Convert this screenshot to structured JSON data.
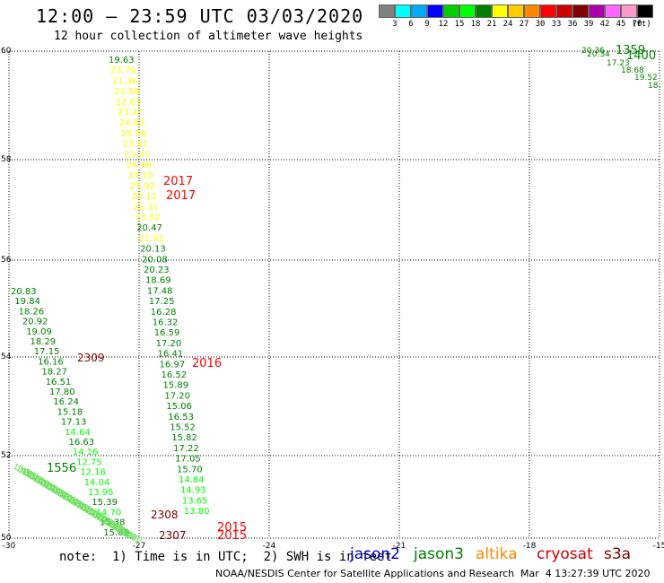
{
  "header": {
    "title": "12:00 – 23:59 UTC 03/03/2020",
    "subtitle": "12 hour collection of altimeter wave heights"
  },
  "colorbar": {
    "colors": [
      "#808080",
      "#00ffff",
      "#00aaff",
      "#0000ff",
      "#00d000",
      "#00ff00",
      "#008000",
      "#ffff00",
      "#ffcc00",
      "#ff8800",
      "#ff0000",
      "#cc0000",
      "#800000",
      "#aa00aa",
      "#ff66ff",
      "#ff99cc",
      "#000000"
    ],
    "ticks": [
      "3",
      "6",
      "9",
      "12",
      "15",
      "18",
      "21",
      "24",
      "27",
      "30",
      "33",
      "36",
      "39",
      "42",
      "45",
      "70"
    ],
    "unit": "(ft)"
  },
  "map": {
    "lat_labels": [
      "60",
      "58",
      "56",
      "54",
      "52",
      "50"
    ],
    "lon_labels": [
      "-30",
      "-27",
      "-24",
      "-21",
      "-18",
      "-15"
    ],
    "lon_range": [
      -30,
      -15
    ],
    "lat_range": [
      50,
      60
    ]
  },
  "track_a": {
    "values": [
      "19.63",
      "23.79",
      "21.36",
      "23.58",
      "22.63",
      "23.47",
      "24.60",
      "25.56",
      "23.61",
      "23.37",
      "24.48",
      "23.15",
      "23.92",
      "22.11",
      "22.31",
      "23.52",
      "20.47",
      "21.92",
      "20.13",
      "20.08",
      "20.23",
      "18.69",
      "17.48",
      "17.25",
      "16.28",
      "16.32",
      "16.59",
      "17.20",
      "16.41",
      "16.97",
      "16.52",
      "15.89",
      "17.20",
      "15.06",
      "16.53",
      "15.52",
      "15.82",
      "17.22",
      "17.05",
      "15.70",
      "14.84",
      "14.93",
      "13.65",
      "13.80"
    ],
    "colors": [
      "#008000",
      "#ffff00",
      "#ffff00",
      "#ffff00",
      "#ffff00",
      "#ffff00",
      "#ffff00",
      "#ffff00",
      "#ffff00",
      "#ffff00",
      "#ffff00",
      "#ffff00",
      "#ffff00",
      "#ffff00",
      "#ffff00",
      "#ffff00",
      "#008000",
      "#ffff00",
      "#008000",
      "#008000",
      "#008000",
      "#008000",
      "#008000",
      "#008000",
      "#008000",
      "#008000",
      "#008000",
      "#008000",
      "#008000",
      "#008000",
      "#008000",
      "#008000",
      "#008000",
      "#008000",
      "#008000",
      "#008000",
      "#008000",
      "#008000",
      "#008000",
      "#008000",
      "#00ff00",
      "#00ff00",
      "#00ff00",
      "#00ff00"
    ],
    "times": [
      {
        "label": "2017",
        "color": "#ff0000"
      },
      {
        "label": "2017",
        "color": "#ff0000"
      },
      {
        "label": "2016",
        "color": "#ff0000"
      },
      {
        "label": "2015",
        "color": "#ff0000"
      },
      {
        "label": "2015",
        "color": "#ff0000"
      }
    ]
  },
  "track_b": {
    "values": [
      "20.83",
      "19.84",
      "18.26",
      "20.92",
      "19.09",
      "18.29",
      "17.15",
      "16.16",
      "18.27",
      "16.51",
      "17.80",
      "16.24",
      "15.18",
      "17.13",
      "14.64",
      "16.63",
      "14.16",
      "12.75",
      "12.16",
      "14.04",
      "13.95",
      "15.39",
      "14.70",
      "15.38",
      "15.09"
    ],
    "colors": [
      "#008000",
      "#008000",
      "#008000",
      "#008000",
      "#008000",
      "#008000",
      "#008000",
      "#008000",
      "#008000",
      "#008000",
      "#008000",
      "#008000",
      "#008000",
      "#008000",
      "#00ff00",
      "#008000",
      "#00ff00",
      "#00ff00",
      "#00ff00",
      "#00ff00",
      "#00ff00",
      "#008000",
      "#00ff00",
      "#008000",
      "#008000"
    ],
    "times": [
      {
        "label": "2309",
        "color": "#800000"
      },
      {
        "label": "2308",
        "color": "#800000"
      },
      {
        "label": "2307",
        "color": "#800000"
      }
    ]
  },
  "track_c": {
    "time": {
      "label": "1556",
      "color": "#008000"
    }
  },
  "track_d": {
    "values": [
      "20.36",
      "20.34",
      "17.23",
      "18.68",
      "19.52",
      "18."
    ],
    "time1": {
      "label": "1359",
      "color": "#008000"
    },
    "time2": {
      "label": "1400",
      "color": "#008000"
    }
  },
  "footer": {
    "note": "note:  1) Time is in UTC;  2) SWH is in feet",
    "satellites": [
      {
        "name": "jason2",
        "color": "#0000cc"
      },
      {
        "name": "jason3",
        "color": "#008000"
      },
      {
        "name": "altika",
        "color": "#ff8800"
      },
      {
        "name": "cryosat",
        "color": "#cc0000"
      },
      {
        "name": "s3a",
        "color": "#800000"
      }
    ],
    "credit": "NOAA/NESDIS Center for Satellite Applications and Research",
    "timestamp": "Mar  4 13:27:39 UTC 2020"
  }
}
